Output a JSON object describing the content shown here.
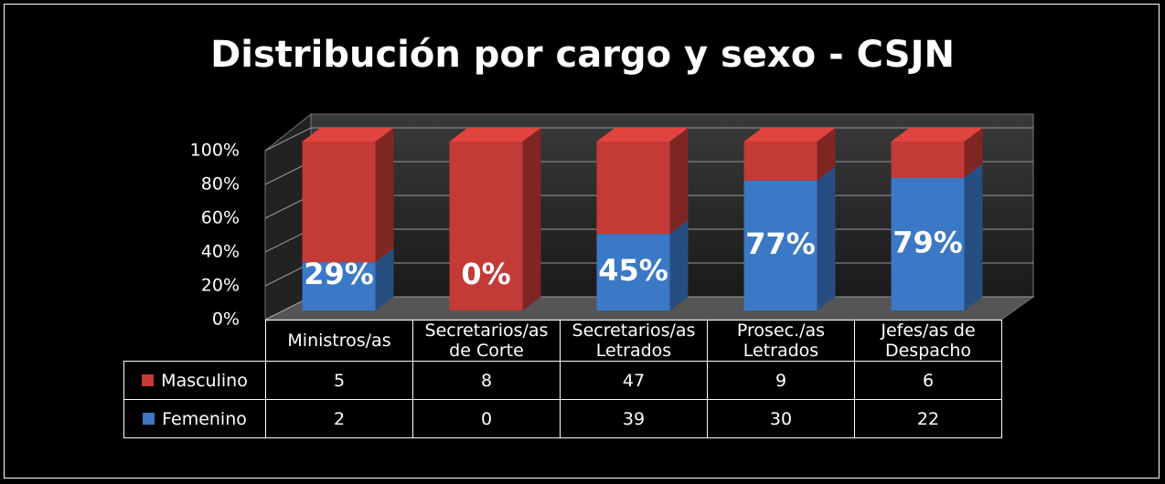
{
  "chart_data": {
    "type": "bar3d_percent_stacked",
    "title": "Distribución por cargo y sexo - CSJN",
    "categories": [
      "Ministros/as",
      "Secretarios/as de Corte",
      "Secretarios/as Letrados",
      "Prosec./as Letrados",
      "Jefes/as de Despacho"
    ],
    "series": [
      {
        "name": "Masculino",
        "color": "#c43a36",
        "values": [
          5,
          8,
          47,
          9,
          6
        ]
      },
      {
        "name": "Femenino",
        "color": "#3b78c6",
        "values": [
          2,
          0,
          39,
          30,
          22
        ]
      }
    ],
    "data_labels": [
      29,
      0,
      45,
      77,
      79
    ],
    "value_labels": [
      "29%",
      "0%",
      "45%",
      "77%",
      "79%"
    ],
    "ylim": [
      0,
      100
    ],
    "yticks": [
      {
        "value": 0,
        "label": "0%"
      },
      {
        "value": 20,
        "label": "20%"
      },
      {
        "value": 40,
        "label": "40%"
      },
      {
        "value": 60,
        "label": "60%"
      },
      {
        "value": 80,
        "label": "80%"
      },
      {
        "value": 100,
        "label": "100%"
      }
    ],
    "grid": true
  }
}
